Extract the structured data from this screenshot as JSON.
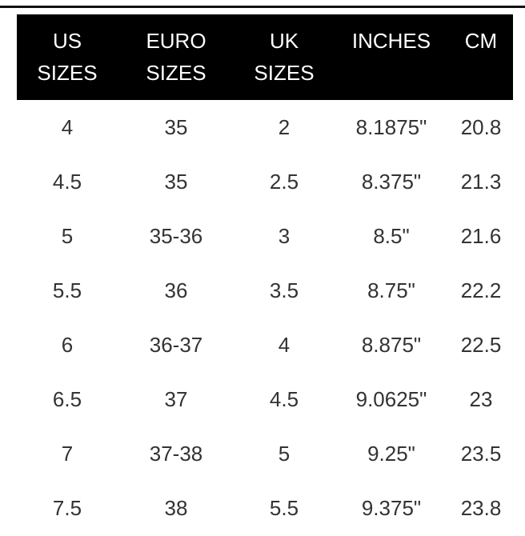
{
  "table": {
    "headers": [
      [
        "US",
        "SIZES"
      ],
      [
        "EURO",
        "SIZES"
      ],
      [
        "UK",
        "SIZES"
      ],
      [
        "INCHES"
      ],
      [
        "CM"
      ]
    ],
    "rows": [
      [
        "4",
        "35",
        "2",
        "8.1875\"",
        "20.8"
      ],
      [
        "4.5",
        "35",
        "2.5",
        "8.375\"",
        "21.3"
      ],
      [
        "5",
        "35-36",
        "3",
        "8.5\"",
        "21.6"
      ],
      [
        "5.5",
        "36",
        "3.5",
        "8.75\"",
        "22.2"
      ],
      [
        "6",
        "36-37",
        "4",
        "8.875\"",
        "22.5"
      ],
      [
        "6.5",
        "37",
        "4.5",
        "9.0625\"",
        "23"
      ],
      [
        "7",
        "37-38",
        "5",
        "9.25\"",
        "23.5"
      ],
      [
        "7.5",
        "38",
        "5.5",
        "9.375\"",
        "23.8"
      ]
    ]
  }
}
